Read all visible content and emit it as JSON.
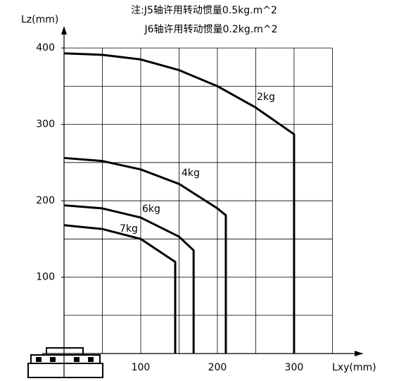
{
  "chart_data": {
    "type": "line",
    "title": [
      "注:J5轴许用转动惯量0.5kg.m^2",
      "J6轴许用转动惯量0.2kg.m^2"
    ],
    "xlabel": "Lxy(mm)",
    "ylabel": "Lz(mm)",
    "xlim": [
      0,
      390
    ],
    "ylim": [
      0,
      425
    ],
    "xticks": [
      100,
      200,
      300
    ],
    "yticks": [
      100,
      200,
      300,
      400
    ],
    "xgrid": [
      50,
      100,
      150,
      200,
      250,
      300,
      350
    ],
    "ygrid": [
      50,
      100,
      150,
      200,
      250,
      300,
      350,
      400
    ],
    "color": "#000000",
    "series": [
      {
        "name": "2kg",
        "x": [
          0,
          50,
          100,
          150,
          200,
          250,
          300,
          300
        ],
        "values": [
          393,
          391,
          385,
          371,
          350,
          322,
          287,
          0
        ]
      },
      {
        "name": "4kg",
        "x": [
          0,
          50,
          100,
          150,
          200,
          211,
          211
        ],
        "values": [
          256,
          252,
          241,
          222,
          190,
          181,
          0
        ]
      },
      {
        "name": "6kg",
        "x": [
          0,
          50,
          100,
          150,
          169,
          169
        ],
        "values": [
          194,
          190,
          178,
          153,
          135,
          0
        ]
      },
      {
        "name": "7kg",
        "x": [
          0,
          50,
          100,
          145,
          145
        ],
        "values": [
          168,
          163,
          150,
          120,
          0
        ]
      }
    ]
  }
}
